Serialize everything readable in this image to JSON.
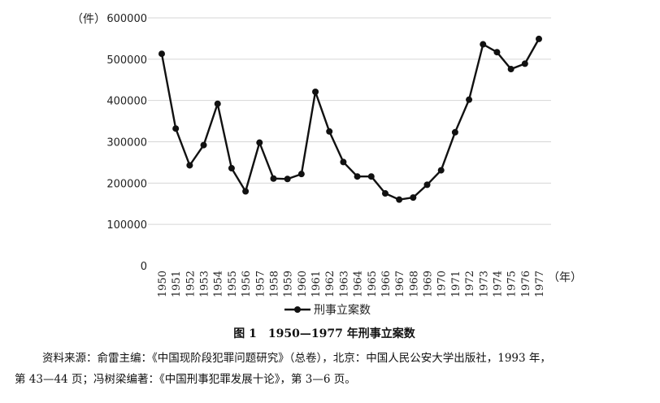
{
  "chart_data": {
    "type": "line",
    "y_unit_label": "（件）",
    "x_unit_label": "（年）",
    "ylim": [
      0,
      600000
    ],
    "yticks": [
      0,
      100000,
      200000,
      300000,
      400000,
      500000,
      600000
    ],
    "grid": "horizontal",
    "legend_position": "bottom",
    "x": [
      "1950",
      "1951",
      "1952",
      "1953",
      "1954",
      "1955",
      "1956",
      "1957",
      "1958",
      "1959",
      "1960",
      "1961",
      "1962",
      "1963",
      "1964",
      "1965",
      "1966",
      "1967",
      "1968",
      "1969",
      "1970",
      "1971",
      "1972",
      "1973",
      "1974",
      "1975",
      "1976",
      "1977"
    ],
    "series": [
      {
        "name": "刑事立案数",
        "values": [
          513000,
          332000,
          243000,
          292000,
          392000,
          236000,
          180000,
          298000,
          211000,
          210000,
          222000,
          421000,
          325000,
          251000,
          216000,
          216000,
          175000,
          160000,
          165000,
          196000,
          231000,
          323000,
          402000,
          536000,
          517000,
          476000,
          489000,
          549000
        ]
      }
    ],
    "colors": {
      "line": "#111111",
      "grid": "#d6d6d6"
    }
  },
  "caption": {
    "figure_no": "图 1",
    "title": "1950—1977 年刑事立案数"
  },
  "source": {
    "line1": "资料来源：俞雷主编：《中国现阶段犯罪问题研究》（总卷），北京：中国人民公安大学出版社，1993 年，",
    "line2": "第 43—44 页；冯树梁编著：《中国刑事犯罪发展十论》，第 3—6 页。"
  }
}
